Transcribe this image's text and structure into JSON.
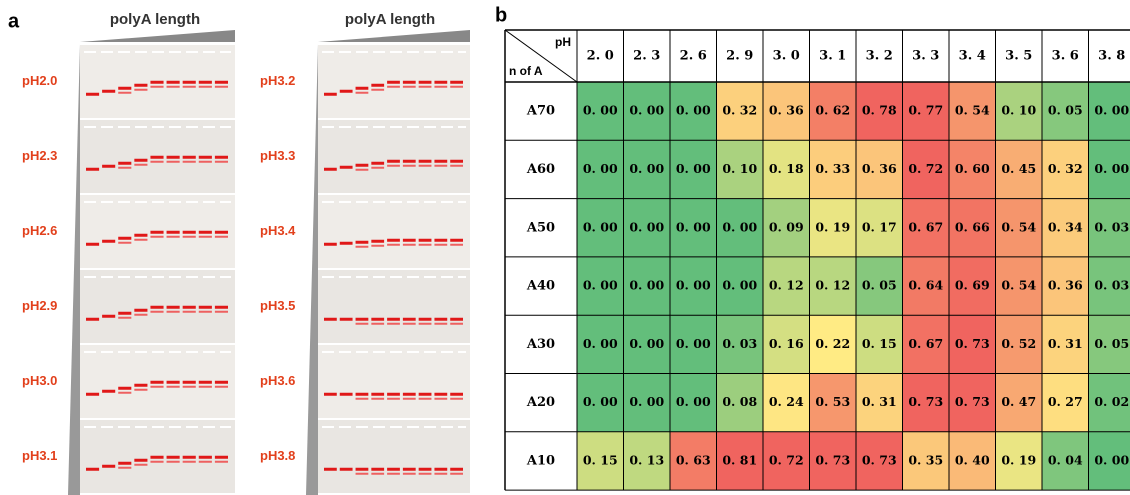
{
  "panel_a": {
    "label": "a",
    "left": {
      "header": "polyA length",
      "lanes": [
        "pH2.0",
        "pH2.3",
        "pH2.6",
        "pH2.9",
        "pH3.0",
        "pH3.1"
      ]
    },
    "right": {
      "header": "polyA length",
      "lanes": [
        "pH3.2",
        "pH3.3",
        "pH3.4",
        "pH3.5",
        "pH3.6",
        "pH3.8"
      ]
    }
  },
  "panel_b": {
    "label": "b",
    "corner_top": "pH",
    "corner_bottom": "n of A",
    "columns": [
      "2. 0",
      "2. 3",
      "2. 6",
      "2. 9",
      "3. 0",
      "3. 1",
      "3. 2",
      "3. 3",
      "3. 4",
      "3. 5",
      "3. 6",
      "3. 8"
    ],
    "rows": [
      {
        "label": "A70",
        "cells": [
          "0. 00",
          "0. 00",
          "0. 00",
          "0. 32",
          "0. 36",
          "0. 62",
          "0. 78",
          "0. 77",
          "0. 54",
          "0. 10",
          "0. 05",
          "0. 00"
        ]
      },
      {
        "label": "A60",
        "cells": [
          "0. 00",
          "0. 00",
          "0. 00",
          "0. 10",
          "0. 18",
          "0. 33",
          "0. 36",
          "0. 72",
          "0. 60",
          "0. 45",
          "0. 32",
          "0. 00"
        ]
      },
      {
        "label": "A50",
        "cells": [
          "0. 00",
          "0. 00",
          "0. 00",
          "0. 00",
          "0. 09",
          "0. 19",
          "0. 17",
          "0. 67",
          "0. 66",
          "0. 54",
          "0. 34",
          "0. 03"
        ]
      },
      {
        "label": "A40",
        "cells": [
          "0. 00",
          "0. 00",
          "0. 00",
          "0. 00",
          "0. 12",
          "0. 12",
          "0. 05",
          "0. 64",
          "0. 69",
          "0. 54",
          "0. 36",
          "0. 03"
        ]
      },
      {
        "label": "A30",
        "cells": [
          "0. 00",
          "0. 00",
          "0. 00",
          "0. 03",
          "0. 16",
          "0. 22",
          "0. 15",
          "0. 67",
          "0. 73",
          "0. 52",
          "0. 31",
          "0. 05"
        ]
      },
      {
        "label": "A20",
        "cells": [
          "0. 00",
          "0. 00",
          "0. 00",
          "0. 08",
          "0. 24",
          "0. 53",
          "0. 31",
          "0. 73",
          "0. 73",
          "0. 47",
          "0. 27",
          "0. 02"
        ]
      },
      {
        "label": "A10",
        "cells": [
          "0. 15",
          "0. 13",
          "0. 63",
          "0. 81",
          "0. 72",
          "0. 73",
          "0. 73",
          "0. 35",
          "0. 40",
          "0. 19",
          "0. 04",
          "0. 00"
        ]
      }
    ]
  }
}
